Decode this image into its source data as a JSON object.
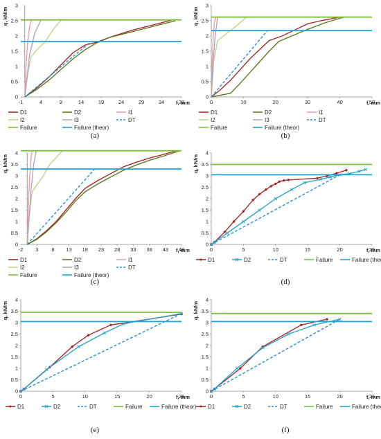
{
  "chart_data": [
    {
      "id": "a",
      "type": "line",
      "panel_label": "(a)",
      "xlabel": "f,  mm",
      "ylabel": "q, kN/m",
      "xlim": [
        -1,
        39
      ],
      "ylim": [
        0,
        3
      ],
      "xticks": [
        -1,
        4,
        9,
        14,
        19,
        24,
        29,
        34,
        39
      ],
      "yticks": [
        0,
        0.5,
        1,
        1.5,
        2,
        2.5,
        3
      ],
      "grid": false,
      "legend_cols": 3,
      "legend_position": "bottom",
      "series": [
        {
          "name": "D1",
          "color": "#a52a2a",
          "dash": "solid",
          "marker": "none",
          "x": [
            0,
            3,
            6,
            9,
            12,
            15,
            18,
            21,
            24,
            27,
            30,
            33,
            36.5
          ],
          "y": [
            0,
            0.3,
            0.65,
            1.05,
            1.45,
            1.7,
            1.8,
            1.95,
            2.08,
            2.2,
            2.3,
            2.4,
            2.52
          ]
        },
        {
          "name": "D2",
          "color": "#5b7a1e",
          "dash": "solid",
          "marker": "none",
          "x": [
            0,
            3,
            6,
            9,
            12,
            15,
            18,
            21,
            24,
            27,
            30,
            33,
            37.5
          ],
          "y": [
            0,
            0.25,
            0.55,
            0.9,
            1.25,
            1.55,
            1.78,
            1.95,
            2.05,
            2.15,
            2.25,
            2.35,
            2.5
          ]
        },
        {
          "name": "I1",
          "color": "#e8a0a0",
          "dash": "solid",
          "marker": "none",
          "x": [
            0,
            0.3,
            0.7,
            1.2,
            1.6
          ],
          "y": [
            0,
            1.0,
            1.8,
            2.3,
            2.52
          ]
        },
        {
          "name": "I2",
          "color": "#b8d88a",
          "dash": "solid",
          "marker": "none",
          "x": [
            0,
            0.8,
            1.5,
            3,
            5,
            7,
            9
          ],
          "y": [
            0,
            0.8,
            1.3,
            1.55,
            1.8,
            2.2,
            2.52
          ]
        },
        {
          "name": "I3",
          "color": "#b3a2c7",
          "dash": "solid",
          "marker": "none",
          "x": [
            0,
            0.5,
            1.2,
            2.5,
            4
          ],
          "y": [
            0,
            0.6,
            1.4,
            2.1,
            2.52
          ]
        },
        {
          "name": "DT",
          "color": "#2a8fd0",
          "dash": "dash",
          "marker": "none",
          "x": [
            0,
            16.5
          ],
          "y": [
            0,
            1.82
          ]
        },
        {
          "name": "Failure",
          "color": "#7dbf3b",
          "dash": "solid",
          "marker": "none",
          "x": [
            -1,
            39
          ],
          "y": [
            2.53,
            2.53
          ]
        },
        {
          "name": "Failure (theor)",
          "color": "#1ea2d9",
          "dash": "solid",
          "marker": "none",
          "x": [
            -1,
            39
          ],
          "y": [
            1.82,
            1.82
          ]
        }
      ]
    },
    {
      "id": "b",
      "type": "line",
      "panel_label": "(b)",
      "xlabel": "f,  mm",
      "ylabel": "q, kN/m",
      "xlim": [
        0,
        50
      ],
      "ylim": [
        0,
        3
      ],
      "xticks": [
        0,
        10,
        20,
        30,
        40,
        50
      ],
      "yticks": [
        0,
        0.5,
        1,
        1.5,
        2,
        2.5,
        3
      ],
      "grid": false,
      "legend_cols": 3,
      "legend_position": "bottom",
      "series": [
        {
          "name": "D1",
          "color": "#a52a2a",
          "dash": "solid",
          "marker": "none",
          "x": [
            0,
            3,
            6,
            9,
            12,
            15,
            18,
            22,
            26,
            30,
            34,
            38,
            40
          ],
          "y": [
            0,
            0.25,
            0.55,
            0.9,
            1.25,
            1.55,
            1.85,
            2.0,
            2.2,
            2.4,
            2.5,
            2.58,
            2.62
          ]
        },
        {
          "name": "D2",
          "color": "#5b7a1e",
          "dash": "solid",
          "marker": "none",
          "x": [
            0,
            6,
            9,
            12,
            15,
            18,
            21,
            25,
            30,
            35,
            40,
            41.5
          ],
          "y": [
            0,
            0.12,
            0.45,
            0.8,
            1.15,
            1.5,
            1.82,
            2.0,
            2.22,
            2.42,
            2.58,
            2.62
          ]
        },
        {
          "name": "I1",
          "color": "#e8a0a0",
          "dash": "solid",
          "marker": "none",
          "x": [
            0,
            0.3,
            0.6,
            1.0,
            1.4
          ],
          "y": [
            0,
            1.2,
            2.0,
            2.45,
            2.62
          ]
        },
        {
          "name": "I2",
          "color": "#b8d88a",
          "dash": "solid",
          "marker": "none",
          "x": [
            0,
            0.8,
            2,
            5,
            8,
            11
          ],
          "y": [
            0,
            1.2,
            1.85,
            2.1,
            2.35,
            2.62
          ]
        },
        {
          "name": "I3",
          "color": "#b3a2c7",
          "dash": "solid",
          "marker": "none",
          "x": [
            0,
            0.5,
            1.2,
            2
          ],
          "y": [
            0,
            1.0,
            2.0,
            2.62
          ]
        },
        {
          "name": "DT",
          "color": "#2a8fd0",
          "dash": "dash",
          "marker": "none",
          "x": [
            0,
            17.5
          ],
          "y": [
            0,
            2.18
          ]
        },
        {
          "name": "Failure",
          "color": "#7dbf3b",
          "dash": "solid",
          "marker": "none",
          "x": [
            0,
            50
          ],
          "y": [
            2.62,
            2.62
          ]
        },
        {
          "name": "Failure (theor)",
          "color": "#1ea2d9",
          "dash": "solid",
          "marker": "none",
          "x": [
            0,
            50
          ],
          "y": [
            2.18,
            2.18
          ]
        }
      ]
    },
    {
      "id": "c",
      "type": "line",
      "panel_label": "(c)",
      "xlabel": "f,  mm",
      "ylabel": "q, kN/m",
      "xlim": [
        -2,
        48
      ],
      "ylim": [
        0,
        4
      ],
      "xticks": [
        -2,
        3,
        8,
        13,
        18,
        23,
        28,
        33,
        38,
        43,
        48
      ],
      "yticks": [
        0,
        0.5,
        1,
        1.5,
        2,
        2.5,
        3,
        3.5,
        4
      ],
      "grid": false,
      "legend_cols": 3,
      "legend_position": "bottom",
      "series": [
        {
          "name": "D1",
          "color": "#a52a2a",
          "dash": "solid",
          "marker": "none",
          "x": [
            0,
            3,
            6,
            9,
            12,
            15,
            18,
            22,
            26,
            30,
            34,
            38,
            42,
            46.5
          ],
          "y": [
            0,
            0.25,
            0.6,
            1.0,
            1.5,
            2.0,
            2.45,
            2.8,
            3.1,
            3.4,
            3.6,
            3.78,
            3.92,
            4.1
          ]
        },
        {
          "name": "D2",
          "color": "#5b7a1e",
          "dash": "solid",
          "marker": "none",
          "x": [
            0,
            3,
            6,
            9,
            12,
            15,
            18,
            22,
            26,
            30,
            34,
            38,
            42,
            47.5
          ],
          "y": [
            0,
            0.22,
            0.55,
            0.95,
            1.4,
            1.9,
            2.3,
            2.65,
            2.95,
            3.25,
            3.48,
            3.68,
            3.85,
            4.1
          ]
        },
        {
          "name": "I1",
          "color": "#e8a0a0",
          "dash": "solid",
          "marker": "none",
          "x": [
            0,
            0.3,
            0.7,
            1.1,
            1.5
          ],
          "y": [
            0,
            1.5,
            2.8,
            3.7,
            4.1
          ]
        },
        {
          "name": "I2",
          "color": "#b8d88a",
          "dash": "solid",
          "marker": "none",
          "x": [
            0,
            0.6,
            1.5,
            3,
            5,
            7,
            9,
            11
          ],
          "y": [
            0,
            1.2,
            2.3,
            2.6,
            3.0,
            3.5,
            3.8,
            4.1
          ]
        },
        {
          "name": "I3",
          "color": "#b3a2c7",
          "dash": "solid",
          "marker": "none",
          "x": [
            0,
            0.5,
            1.2,
            2,
            2.8
          ],
          "y": [
            0,
            1.0,
            2.4,
            3.5,
            4.1
          ]
        },
        {
          "name": "DT",
          "color": "#2a8fd0",
          "dash": "dash",
          "marker": "none",
          "x": [
            0,
            21
          ],
          "y": [
            0,
            3.3
          ]
        },
        {
          "name": "Failure",
          "color": "#7dbf3b",
          "dash": "solid",
          "marker": "none",
          "x": [
            -2,
            48
          ],
          "y": [
            4.1,
            4.1
          ]
        },
        {
          "name": "Failure (theor)",
          "color": "#1ea2d9",
          "dash": "solid",
          "marker": "none",
          "x": [
            -2,
            48
          ],
          "y": [
            3.3,
            3.3
          ]
        }
      ]
    },
    {
      "id": "d",
      "type": "line",
      "panel_label": "(d)",
      "xlabel": "f, mm",
      "ylabel": "q, kN/m",
      "xlim": [
        0,
        25
      ],
      "ylim": [
        0,
        4
      ],
      "xticks": [
        0,
        5,
        10,
        15,
        20,
        25
      ],
      "yticks": [
        0,
        0.5,
        1,
        1.5,
        2,
        2.5,
        3,
        3.5,
        4
      ],
      "grid": false,
      "legend_cols": 5,
      "legend_position": "bottom",
      "series": [
        {
          "name": "D1",
          "color": "#a52a2a",
          "dash": "solid",
          "marker": "diamond",
          "x": [
            0,
            0.5,
            2.1,
            3.5,
            5,
            6.5,
            7.5,
            8.5,
            9.3,
            10,
            10.6,
            11.3,
            12,
            16.5,
            18,
            19.5,
            21
          ],
          "y": [
            0,
            0.1,
            0.55,
            1.0,
            1.45,
            1.95,
            2.2,
            2.4,
            2.55,
            2.65,
            2.75,
            2.8,
            2.82,
            2.9,
            3.0,
            3.12,
            3.25
          ]
        },
        {
          "name": "D2",
          "color": "#2ba7c6",
          "dash": "solid",
          "marker": "x",
          "x": [
            0,
            0.5,
            2.5,
            5,
            7.5,
            10,
            12.5,
            14.5,
            17,
            18.5,
            20,
            21.5,
            23,
            24
          ],
          "y": [
            0,
            0.1,
            0.5,
            1.0,
            1.5,
            2.0,
            2.4,
            2.7,
            2.85,
            2.95,
            3.05,
            3.1,
            3.2,
            3.28
          ]
        },
        {
          "name": "DT",
          "color": "#2a8fd0",
          "dash": "dash",
          "marker": "none",
          "x": [
            0,
            20
          ],
          "y": [
            0,
            3.05
          ]
        },
        {
          "name": "Failure",
          "color": "#7dbf3b",
          "dash": "solid",
          "marker": "none",
          "x": [
            0,
            25
          ],
          "y": [
            3.5,
            3.5
          ]
        },
        {
          "name": "Failure (theor)",
          "color": "#1ea2d9",
          "dash": "solid",
          "marker": "none",
          "x": [
            0,
            25
          ],
          "y": [
            3.05,
            3.05
          ]
        }
      ]
    },
    {
      "id": "e",
      "type": "line",
      "panel_label": "(e)",
      "xlabel": "f, mm",
      "ylabel": "q, kN/m",
      "xlim": [
        0,
        25
      ],
      "ylim": [
        0,
        4
      ],
      "xticks": [
        0,
        5,
        10,
        15,
        20,
        25
      ],
      "yticks": [
        0,
        0.5,
        1,
        1.5,
        2,
        2.5,
        3,
        3.5,
        4
      ],
      "grid": false,
      "legend_cols": 5,
      "legend_position": "bottom",
      "series": [
        {
          "name": "D1",
          "color": "#a52a2a",
          "dash": "solid",
          "marker": "diamond",
          "x": [
            0,
            0.5,
            4.5,
            8,
            10.5,
            14,
            16.5,
            25
          ],
          "y": [
            0,
            0.1,
            1.05,
            1.95,
            2.45,
            2.9,
            3.0,
            3.38
          ]
        },
        {
          "name": "D2",
          "color": "#2ba7c6",
          "dash": "solid",
          "marker": "x",
          "x": [
            0,
            0.5,
            4,
            9,
            13,
            16,
            25
          ],
          "y": [
            0,
            0.1,
            0.95,
            1.95,
            2.55,
            2.95,
            3.4
          ]
        },
        {
          "name": "DT",
          "color": "#2a8fd0",
          "dash": "dash",
          "marker": "none",
          "x": [
            0,
            25
          ],
          "y": [
            0,
            3.4
          ]
        },
        {
          "name": "Failure",
          "color": "#7dbf3b",
          "dash": "solid",
          "marker": "none",
          "x": [
            0,
            25
          ],
          "y": [
            3.45,
            3.45
          ]
        },
        {
          "name": "Failure (theor)",
          "color": "#1ea2d9",
          "dash": "solid",
          "marker": "none",
          "x": [
            0,
            25
          ],
          "y": [
            3.05,
            3.05
          ]
        }
      ]
    },
    {
      "id": "f",
      "type": "line",
      "panel_label": "(f)",
      "xlabel": "f, mm",
      "ylabel": "q, kN/m",
      "xlim": [
        0,
        25
      ],
      "ylim": [
        0,
        4
      ],
      "xticks": [
        0,
        5,
        10,
        15,
        20,
        25
      ],
      "yticks": [
        0,
        0.5,
        1,
        1.5,
        2,
        2.5,
        3,
        3.5,
        4
      ],
      "grid": false,
      "legend_cols": 5,
      "legend_position": "bottom",
      "series": [
        {
          "name": "D1",
          "color": "#a52a2a",
          "dash": "solid",
          "marker": "diamond",
          "x": [
            0,
            0.5,
            4.5,
            8,
            14,
            18
          ],
          "y": [
            0,
            0.1,
            1.0,
            1.95,
            2.9,
            3.15
          ]
        },
        {
          "name": "D2",
          "color": "#2ba7c6",
          "dash": "solid",
          "marker": "x",
          "x": [
            0,
            0.5,
            4,
            8,
            12,
            16,
            20
          ],
          "y": [
            0,
            0.1,
            1.0,
            1.9,
            2.5,
            2.9,
            3.15
          ]
        },
        {
          "name": "DT",
          "color": "#2a8fd0",
          "dash": "dash",
          "marker": "none",
          "x": [
            0,
            20
          ],
          "y": [
            0,
            3.15
          ]
        },
        {
          "name": "Failure",
          "color": "#7dbf3b",
          "dash": "solid",
          "marker": "none",
          "x": [
            0,
            25
          ],
          "y": [
            3.4,
            3.4
          ]
        },
        {
          "name": "Failure (theor)",
          "color": "#1ea2d9",
          "dash": "solid",
          "marker": "none",
          "x": [
            0,
            25
          ],
          "y": [
            3.05,
            3.05
          ]
        }
      ]
    }
  ]
}
